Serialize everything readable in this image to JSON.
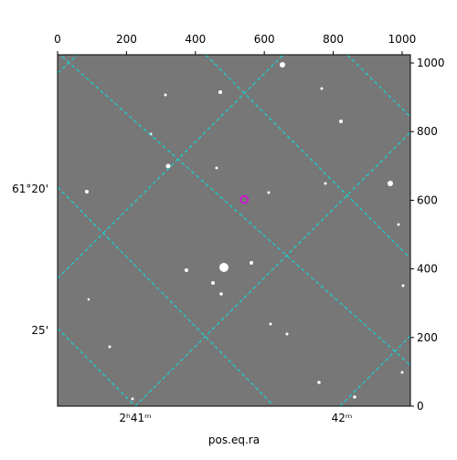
{
  "chart_data": {
    "type": "image",
    "xlabel": "pos.eq.ra",
    "xlim": [
      0,
      1024
    ],
    "xticks": [
      0,
      200,
      400,
      600,
      800,
      1000
    ],
    "ylim": [
      0,
      1024
    ],
    "yticks": [
      0,
      200,
      400,
      600,
      800,
      1000
    ],
    "ra_labels": [
      "2ʰ41ᵐ",
      "42ᵐ"
    ],
    "dec_labels": [
      "61°20'",
      "25'"
    ],
    "grid_color": "#00e5e5",
    "marker": {
      "x": 542,
      "y": 602,
      "color": "#e000e0"
    }
  }
}
